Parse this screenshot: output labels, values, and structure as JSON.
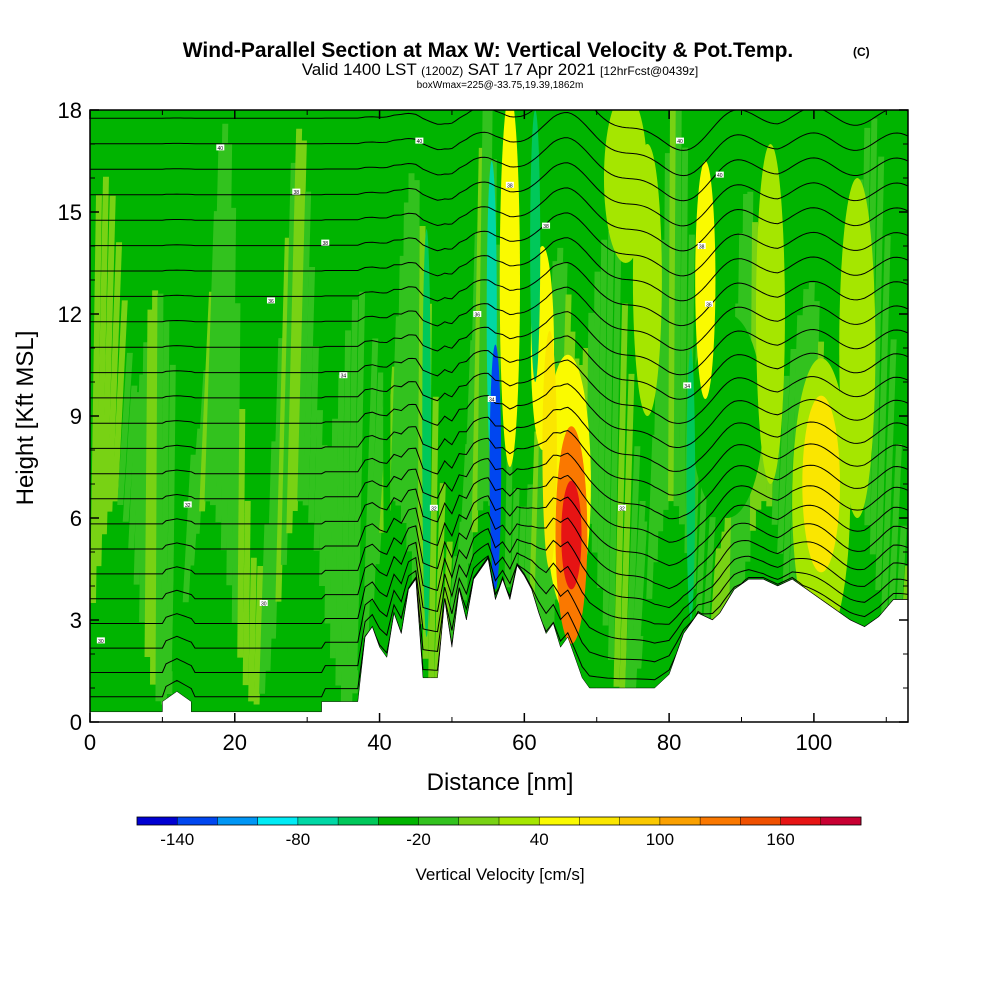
{
  "chart_data": {
    "type": "heatmap",
    "title": "Wind-Parallel Section at Max W: Vertical Velocity & Pot.Temp.",
    "title_mark": "(C)",
    "subtitle": {
      "part1": "Valid 1400 LST",
      "part2": "(1200Z)",
      "part3": "SAT 17 Apr 2021",
      "part4": "[12hrFcst@0439z]"
    },
    "subtitle2": "boxWmax=225@-33.75,19.39,1862m",
    "xlabel": "Distance [nm]",
    "ylabel": "Height [Kft MSL]",
    "xlim": [
      0,
      113
    ],
    "ylim": [
      0,
      18
    ],
    "x_ticks": [
      {
        "value": 0,
        "label": "0"
      },
      {
        "value": 20,
        "label": "20"
      },
      {
        "value": 40,
        "label": "40"
      },
      {
        "value": 60,
        "label": "60"
      },
      {
        "value": 80,
        "label": "80"
      },
      {
        "value": 100,
        "label": "100"
      }
    ],
    "y_ticks": [
      {
        "value": 0,
        "label": "0"
      },
      {
        "value": 3,
        "label": "3"
      },
      {
        "value": 6,
        "label": "6"
      },
      {
        "value": 9,
        "label": "9"
      },
      {
        "value": 12,
        "label": "12"
      },
      {
        "value": 15,
        "label": "15"
      },
      {
        "value": 18,
        "label": "18"
      }
    ],
    "colorbar": {
      "label": "Vertical Velocity [cm/s]",
      "min": -160,
      "max": 200,
      "step": 20,
      "tick_labels": [
        {
          "value": -140,
          "label": "-140"
        },
        {
          "value": -80,
          "label": "-80"
        },
        {
          "value": -20,
          "label": "-20"
        },
        {
          "value": 40,
          "label": "40"
        },
        {
          "value": 100,
          "label": "100"
        },
        {
          "value": 160,
          "label": "160"
        }
      ],
      "colors": [
        "#0000d2",
        "#0046f0",
        "#0096f5",
        "#00ebf5",
        "#00d7a5",
        "#00c85a",
        "#00b400",
        "#32c21e",
        "#78d214",
        "#a5e600",
        "#fafa00",
        "#fae600",
        "#fac800",
        "#faa000",
        "#fa7800",
        "#f05000",
        "#e61414",
        "#c80032"
      ]
    },
    "terrain": [
      [
        0,
        0.3
      ],
      [
        10,
        0.3
      ],
      [
        10,
        0.6
      ],
      [
        12,
        0.9
      ],
      [
        14,
        0.6
      ],
      [
        14,
        0.3
      ],
      [
        32,
        0.3
      ],
      [
        32,
        0.6
      ],
      [
        37,
        0.6
      ],
      [
        38,
        2.5
      ],
      [
        39,
        2.8
      ],
      [
        40,
        2.2
      ],
      [
        41,
        1.9
      ],
      [
        42,
        3.2
      ],
      [
        43,
        2.6
      ],
      [
        44,
        3.9
      ],
      [
        45,
        4.2
      ],
      [
        46,
        1.3
      ],
      [
        47,
        1.3
      ],
      [
        48,
        1.3
      ],
      [
        49,
        3.6
      ],
      [
        50,
        2.2
      ],
      [
        51,
        3.9
      ],
      [
        52,
        3.0
      ],
      [
        53,
        4.2
      ],
      [
        54,
        4.5
      ],
      [
        55,
        4.8
      ],
      [
        56,
        3.6
      ],
      [
        57,
        4.2
      ],
      [
        58,
        3.6
      ],
      [
        59,
        4.6
      ],
      [
        60,
        4.3
      ],
      [
        61,
        3.9
      ],
      [
        62,
        3.2
      ],
      [
        63,
        2.6
      ],
      [
        64,
        2.9
      ],
      [
        65,
        2.2
      ],
      [
        66,
        2.5
      ],
      [
        67,
        1.9
      ],
      [
        68,
        1.3
      ],
      [
        69,
        1.0
      ],
      [
        70,
        1.0
      ],
      [
        74,
        1.0
      ],
      [
        78,
        1.0
      ],
      [
        80,
        1.4
      ],
      [
        82,
        2.6
      ],
      [
        84,
        3.2
      ],
      [
        86,
        3.0
      ],
      [
        87,
        3.2
      ],
      [
        89,
        3.9
      ],
      [
        91,
        4.2
      ],
      [
        93,
        4.2
      ],
      [
        95,
        4.0
      ],
      [
        97,
        4.2
      ],
      [
        99,
        3.9
      ],
      [
        101,
        3.6
      ],
      [
        103,
        3.3
      ],
      [
        105,
        3.0
      ],
      [
        107,
        2.8
      ],
      [
        109,
        3.1
      ],
      [
        111,
        3.6
      ],
      [
        113,
        3.6
      ]
    ],
    "velocity_features": [
      {
        "x": 66.5,
        "z": 5.5,
        "width": 1.4,
        "height": 1.6,
        "value": 170
      },
      {
        "x": 66.5,
        "z": 5.5,
        "width": 2.2,
        "height": 3.2,
        "value": 120
      },
      {
        "x": 66.0,
        "z": 7.0,
        "width": 3.2,
        "height": 3.8,
        "value": 50
      },
      {
        "x": 101.0,
        "z": 7.0,
        "width": 2.6,
        "height": 2.6,
        "value": 70
      },
      {
        "x": 101.0,
        "z": 6.5,
        "width": 4.0,
        "height": 4.2,
        "value": 30
      },
      {
        "x": 58.0,
        "z": 13.0,
        "width": 1.4,
        "height": 5.5,
        "value": 45
      },
      {
        "x": 62.5,
        "z": 11.0,
        "width": 1.6,
        "height": 3.0,
        "value": 50
      },
      {
        "x": 63.5,
        "z": 8.0,
        "width": 1.0,
        "height": 3.5,
        "value": 60
      },
      {
        "x": 56.0,
        "z": 7.5,
        "width": 0.8,
        "height": 3.6,
        "value": -130
      },
      {
        "x": 55.5,
        "z": 12.0,
        "width": 0.7,
        "height": 4.5,
        "value": -70
      },
      {
        "x": 61.5,
        "z": 14.0,
        "width": 0.7,
        "height": 4.0,
        "value": -60
      },
      {
        "x": 46.5,
        "z": 8.5,
        "width": 0.6,
        "height": 6.0,
        "value": -50
      },
      {
        "x": 41.0,
        "z": 9.0,
        "width": 0.5,
        "height": 7.0,
        "value": -40
      },
      {
        "x": 83.0,
        "z": 7.0,
        "width": 0.6,
        "height": 4.0,
        "value": -60
      },
      {
        "x": 88.0,
        "z": 9.0,
        "width": 5.0,
        "height": 3.0,
        "value": -30
      },
      {
        "x": 85.0,
        "z": 13.0,
        "width": 1.4,
        "height": 3.5,
        "value": 40
      },
      {
        "x": 77.0,
        "z": 13.0,
        "width": 2.0,
        "height": 4.0,
        "value": 25
      },
      {
        "x": 94.0,
        "z": 12.0,
        "width": 2.0,
        "height": 5.0,
        "value": 20
      },
      {
        "x": 74.0,
        "z": 16.0,
        "width": 3.0,
        "height": 2.5,
        "value": 20
      },
      {
        "x": 106.0,
        "z": 11.0,
        "width": 2.5,
        "height": 5.0,
        "value": 20
      }
    ],
    "isentrope_labels": [
      {
        "x": 1.5,
        "z": 2.4,
        "text": "30"
      },
      {
        "x": 13.5,
        "z": 6.4,
        "text": "32"
      },
      {
        "x": 24.0,
        "z": 3.5,
        "text": "30"
      },
      {
        "x": 25.0,
        "z": 12.4,
        "text": "36"
      },
      {
        "x": 28.5,
        "z": 15.6,
        "text": "38"
      },
      {
        "x": 18.0,
        "z": 16.9,
        "text": "40"
      },
      {
        "x": 32.5,
        "z": 14.1,
        "text": "38"
      },
      {
        "x": 35.0,
        "z": 10.2,
        "text": "34"
      },
      {
        "x": 45.5,
        "z": 17.1,
        "text": "40"
      },
      {
        "x": 47.5,
        "z": 6.3,
        "text": "32"
      },
      {
        "x": 53.5,
        "z": 12.0,
        "text": "36"
      },
      {
        "x": 55.5,
        "z": 9.5,
        "text": "34"
      },
      {
        "x": 58.0,
        "z": 15.8,
        "text": "38"
      },
      {
        "x": 63.0,
        "z": 14.6,
        "text": "38"
      },
      {
        "x": 73.5,
        "z": 6.3,
        "text": "32"
      },
      {
        "x": 81.5,
        "z": 17.1,
        "text": "40"
      },
      {
        "x": 82.5,
        "z": 9.9,
        "text": "34"
      },
      {
        "x": 84.5,
        "z": 14.0,
        "text": "38"
      },
      {
        "x": 85.5,
        "z": 12.3,
        "text": "36"
      },
      {
        "x": 87.0,
        "z": 16.1,
        "text": "40"
      }
    ]
  }
}
